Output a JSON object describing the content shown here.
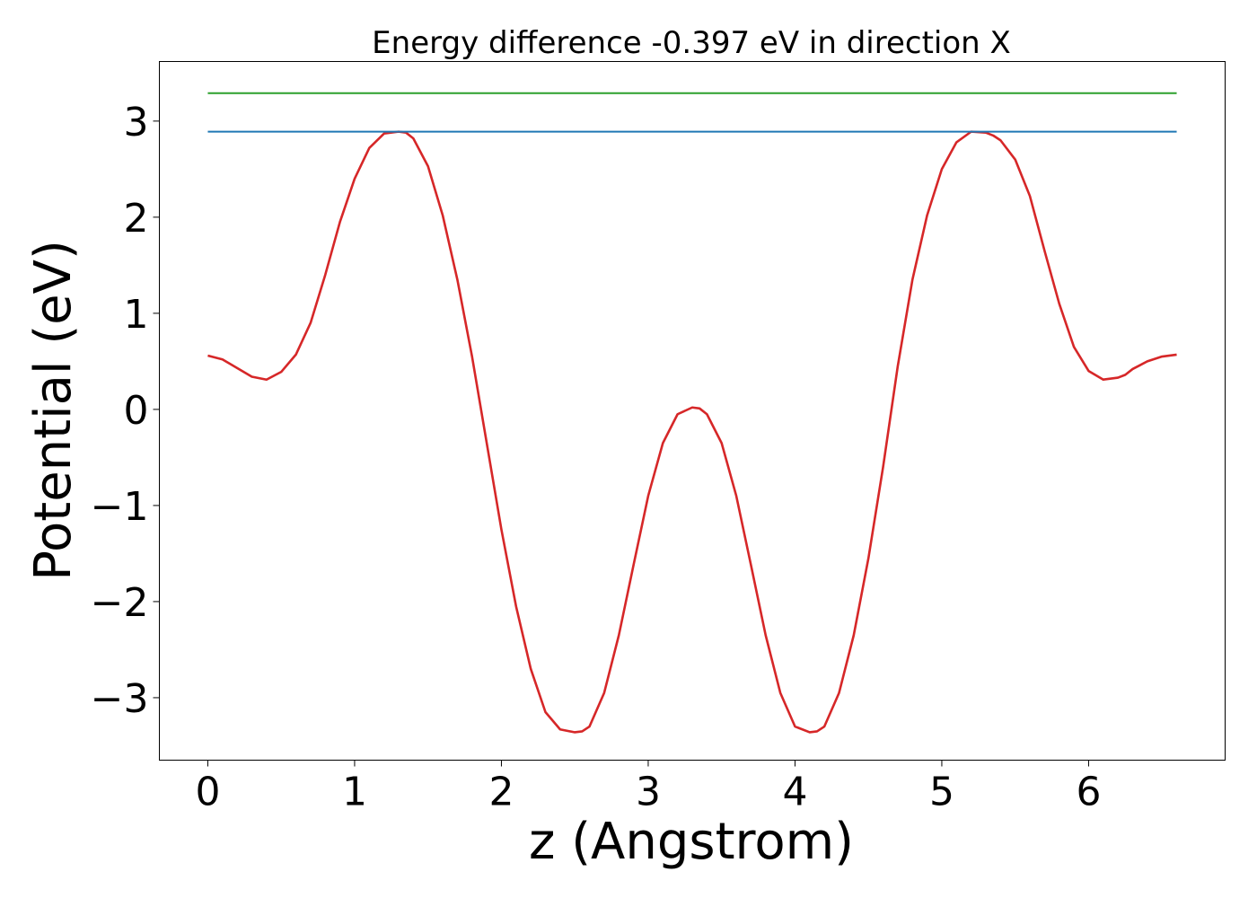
{
  "chart_data": {
    "type": "line",
    "title": "Energy difference -0.397 eV in direction X",
    "xlabel": "z (Angstrom)",
    "ylabel": "Potential (eV)",
    "xlim": [
      -0.33,
      6.93
    ],
    "ylim": [
      -3.65,
      3.62
    ],
    "xticks": [
      0,
      1,
      2,
      3,
      4,
      5,
      6
    ],
    "yticks": [
      -3,
      -2,
      -1,
      0,
      1,
      2,
      3
    ],
    "xtick_labels": [
      "0",
      "1",
      "2",
      "3",
      "4",
      "5",
      "6"
    ],
    "ytick_labels": [
      "−3",
      "−2",
      "−1",
      "0",
      "1",
      "2",
      "3"
    ],
    "grid": false,
    "series": [
      {
        "color": "#d62728",
        "x": [
          0.0,
          0.1,
          0.2,
          0.3,
          0.4,
          0.5,
          0.6,
          0.7,
          0.8,
          0.9,
          1.0,
          1.1,
          1.2,
          1.3,
          1.35,
          1.4,
          1.5,
          1.6,
          1.7,
          1.8,
          1.9,
          2.0,
          2.1,
          2.2,
          2.3,
          2.4,
          2.5,
          2.55,
          2.6,
          2.7,
          2.8,
          2.9,
          3.0,
          3.1,
          3.2,
          3.3,
          3.35,
          3.4,
          3.5,
          3.6,
          3.7,
          3.8,
          3.9,
          4.0,
          4.1,
          4.15,
          4.2,
          4.3,
          4.4,
          4.5,
          4.6,
          4.7,
          4.8,
          4.9,
          5.0,
          5.1,
          5.2,
          5.3,
          5.35,
          5.4,
          5.5,
          5.6,
          5.7,
          5.8,
          5.9,
          6.0,
          6.1,
          6.2,
          6.25,
          6.3,
          6.4,
          6.5,
          6.6
        ],
        "y": [
          0.56,
          0.52,
          0.43,
          0.34,
          0.31,
          0.39,
          0.57,
          0.9,
          1.4,
          1.95,
          2.4,
          2.72,
          2.87,
          2.89,
          2.88,
          2.82,
          2.53,
          2.02,
          1.35,
          0.55,
          -0.35,
          -1.25,
          -2.05,
          -2.7,
          -3.15,
          -3.33,
          -3.36,
          -3.35,
          -3.3,
          -2.95,
          -2.35,
          -1.62,
          -0.9,
          -0.35,
          -0.05,
          0.02,
          0.01,
          -0.05,
          -0.35,
          -0.9,
          -1.62,
          -2.35,
          -2.95,
          -3.3,
          -3.36,
          -3.35,
          -3.3,
          -2.95,
          -2.35,
          -1.55,
          -0.6,
          0.45,
          1.35,
          2.02,
          2.5,
          2.78,
          2.89,
          2.88,
          2.85,
          2.8,
          2.6,
          2.22,
          1.65,
          1.1,
          0.65,
          0.4,
          0.31,
          0.33,
          0.36,
          0.42,
          0.5,
          0.55,
          0.57
        ]
      },
      {
        "color": "#1f77b4",
        "x": [
          0.0,
          6.6
        ],
        "y": [
          2.89,
          2.89
        ]
      },
      {
        "color": "#2ca02c",
        "x": [
          0.0,
          6.6
        ],
        "y": [
          3.29,
          3.29
        ]
      }
    ]
  }
}
